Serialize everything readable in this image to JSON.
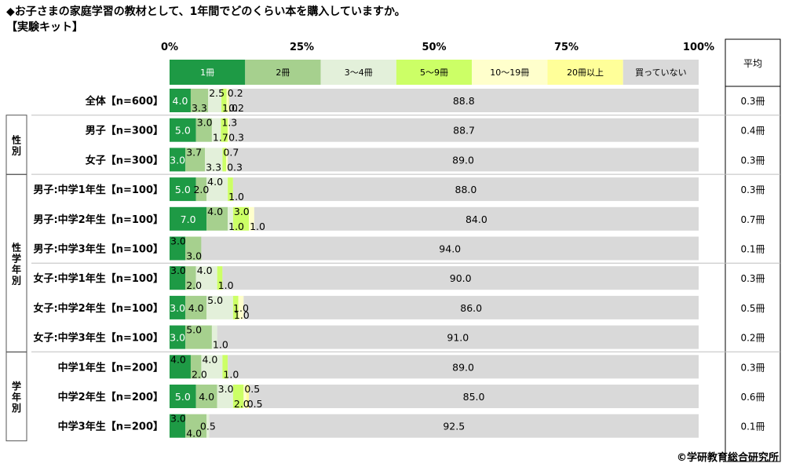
{
  "title": "◆お子さまの家庭学習の教材として、1年間でどのくらい本を購入していますか。",
  "subtitle": "【実験キット】",
  "copyright": "©学研教育総合研究所",
  "colors": {
    "series": [
      "#1e9a45",
      "#a6d08e",
      "#e3f0da",
      "#ccff66",
      "#ffffcc",
      "#ffff99",
      "#d9d9d9"
    ],
    "value_text_on_dark": "#ffffff",
    "value_text": "#000000",
    "grid": "#bfbfbf"
  },
  "chart_data": {
    "type": "bar",
    "orientation": "horizontal",
    "stacked": true,
    "xlim": [
      0,
      100
    ],
    "x_ticks": [
      "0%",
      "25%",
      "50%",
      "75%",
      "100%"
    ],
    "legend_position": "top",
    "side_column_header": "平均",
    "series": [
      {
        "name": "1冊",
        "values": [
          4.0,
          5.0,
          3.0,
          5.0,
          7.0,
          3.0,
          3.0,
          3.0,
          3.0,
          4.0,
          5.0,
          3.0
        ]
      },
      {
        "name": "2冊",
        "values": [
          3.3,
          3.0,
          3.7,
          2.0,
          4.0,
          3.0,
          2.0,
          4.0,
          5.0,
          2.0,
          4.0,
          4.0
        ]
      },
      {
        "name": "3～4冊",
        "values": [
          2.5,
          1.7,
          3.3,
          4.0,
          1.0,
          0,
          4.0,
          5.0,
          1.0,
          4.0,
          3.0,
          0.5
        ]
      },
      {
        "name": "5～9冊",
        "values": [
          1.0,
          1.3,
          0.7,
          1.0,
          3.0,
          0,
          1.0,
          1.0,
          0,
          1.0,
          2.0,
          0
        ]
      },
      {
        "name": "10～19冊",
        "values": [
          0.2,
          0.3,
          0.3,
          0,
          1.0,
          0,
          0,
          1.0,
          0,
          0,
          0.5,
          0
        ]
      },
      {
        "name": "20冊以上",
        "values": [
          0.2,
          0,
          0,
          0,
          0,
          0,
          0,
          0,
          0,
          0,
          0.5,
          0
        ]
      },
      {
        "name": "買っていない",
        "values": [
          88.8,
          88.7,
          89.0,
          88.0,
          84.0,
          94.0,
          90.0,
          86.0,
          91.0,
          89.0,
          85.0,
          92.5
        ]
      }
    ],
    "rows": [
      {
        "label": "全体【n=600】",
        "avg": "0.3冊"
      },
      {
        "label": "男子【n=300】",
        "avg": "0.4冊"
      },
      {
        "label": "女子【n=300】",
        "avg": "0.3冊"
      },
      {
        "label": "男子:中学1年生【n=100】",
        "avg": "0.3冊"
      },
      {
        "label": "男子:中学2年生【n=100】",
        "avg": "0.7冊"
      },
      {
        "label": "男子:中学3年生【n=100】",
        "avg": "0.1冊"
      },
      {
        "label": "女子:中学1年生【n=100】",
        "avg": "0.3冊"
      },
      {
        "label": "女子:中学2年生【n=100】",
        "avg": "0.5冊"
      },
      {
        "label": "女子:中学3年生【n=100】",
        "avg": "0.2冊"
      },
      {
        "label": "中学1年生【n=200】",
        "avg": "0.3冊"
      },
      {
        "label": "中学2年生【n=200】",
        "avg": "0.6冊"
      },
      {
        "label": "中学3年生【n=200】",
        "avg": "0.1冊"
      }
    ],
    "groups": [
      {
        "label": "性別",
        "rows": [
          1,
          2
        ]
      },
      {
        "label": "性学年別",
        "rows": [
          3,
          8
        ]
      },
      {
        "label": "学年別",
        "rows": [
          9,
          11
        ]
      }
    ],
    "data_label_layout": [
      [
        [
          "4.0",
          "in",
          0
        ],
        [
          "3.3",
          "bl",
          1
        ],
        [
          "2.5",
          "ab",
          2
        ],
        [
          "1.0",
          "bl",
          3
        ],
        [
          "0.2",
          "ab",
          4
        ],
        [
          "0.2",
          "bl",
          5
        ],
        [
          "88.8",
          "in",
          6
        ]
      ],
      [
        [
          "5.0",
          "in",
          0
        ],
        [
          "3.0",
          "ab",
          1
        ],
        [
          "1.7",
          "bl",
          2
        ],
        [
          "1.3",
          "ab",
          3
        ],
        [
          "0.3",
          "bl",
          4
        ],
        [
          "88.7",
          "in",
          6
        ]
      ],
      [
        [
          "3.0",
          "in",
          0
        ],
        [
          "3.7",
          "ab",
          1
        ],
        [
          "3.3",
          "bl",
          2
        ],
        [
          "0.7",
          "ab",
          3
        ],
        [
          "0.3",
          "bl",
          4
        ],
        [
          "89.0",
          "in",
          6
        ]
      ],
      [
        [
          "5.0",
          "in",
          0
        ],
        [
          "2.0",
          "in",
          1
        ],
        [
          "4.0",
          "ab",
          2
        ],
        [
          "1.0",
          "bl",
          3
        ],
        [
          "88.0",
          "in",
          6
        ]
      ],
      [
        [
          "7.0",
          "in",
          0
        ],
        [
          "4.0",
          "ab",
          1
        ],
        [
          "1.0",
          "bl",
          2
        ],
        [
          "3.0",
          "ab",
          3
        ],
        [
          "1.0",
          "bl",
          4
        ],
        [
          "84.0",
          "in",
          6
        ]
      ],
      [
        [
          "3.0",
          "ab",
          0
        ],
        [
          "3.0",
          "bl",
          1
        ],
        [
          "94.0",
          "in",
          6
        ]
      ],
      [
        [
          "3.0",
          "ab",
          0
        ],
        [
          "2.0",
          "bl",
          1
        ],
        [
          "4.0",
          "ab",
          2
        ],
        [
          "1.0",
          "bl",
          3
        ],
        [
          "90.0",
          "in",
          6
        ]
      ],
      [
        [
          "3.0",
          "in",
          0
        ],
        [
          "4.0",
          "in",
          1
        ],
        [
          "5.0",
          "ab",
          2
        ],
        [
          "1.0",
          "bl",
          3
        ],
        [
          "1.0",
          "in",
          4
        ],
        [
          "86.0",
          "in",
          6
        ]
      ],
      [
        [
          "3.0",
          "in",
          0
        ],
        [
          "5.0",
          "ab",
          1
        ],
        [
          "1.0",
          "bl",
          2
        ],
        [
          "91.0",
          "in",
          6
        ]
      ],
      [
        [
          "4.0",
          "ab",
          0
        ],
        [
          "2.0",
          "bl",
          1
        ],
        [
          "4.0",
          "ab",
          2
        ],
        [
          "1.0",
          "bl",
          3
        ],
        [
          "89.0",
          "in",
          6
        ]
      ],
      [
        [
          "5.0",
          "in",
          0
        ],
        [
          "4.0",
          "in",
          1
        ],
        [
          "3.0",
          "ab",
          2
        ],
        [
          "2.0",
          "bl",
          3
        ],
        [
          "0.5",
          "ab",
          4
        ],
        [
          "0.5",
          "bl",
          5
        ],
        [
          "85.0",
          "in",
          6
        ]
      ],
      [
        [
          "3.0",
          "ab",
          0
        ],
        [
          "4.0",
          "bl",
          1
        ],
        [
          "0.5",
          "in",
          2
        ],
        [
          "92.5",
          "in",
          6
        ]
      ]
    ]
  }
}
